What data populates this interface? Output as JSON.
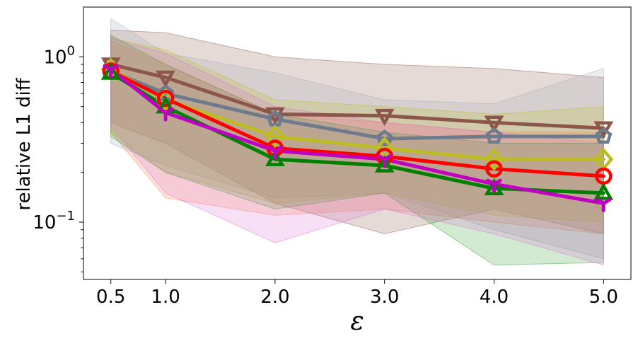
{
  "chart_data": {
    "type": "line",
    "title": "",
    "xlabel": "ε",
    "ylabel": "relative L1 diff",
    "yscale": "log",
    "ylim": [
      0.045,
      2.0
    ],
    "xlim": [
      0.25,
      5.25
    ],
    "x": [
      0.5,
      1.0,
      2.0,
      3.0,
      4.0,
      5.0
    ],
    "x_tick_labels": [
      "0.5",
      "1.0",
      "2.0",
      "3.0",
      "4.0",
      "5.0"
    ],
    "y_major_ticks": [
      {
        "value": 1.0,
        "base": "10",
        "exp": "0"
      },
      {
        "value": 0.1,
        "base": "10",
        "exp": "−1"
      }
    ],
    "grid": false,
    "legend": "none",
    "series": [
      {
        "name": "brown",
        "color": "#8c564b",
        "marker": "triangle-down",
        "values": [
          0.9,
          0.75,
          0.45,
          0.44,
          0.4,
          0.37
        ],
        "band_low": [
          0.4,
          0.3,
          0.13,
          0.085,
          0.12,
          0.085
        ],
        "band_high": [
          1.45,
          1.4,
          1.0,
          0.9,
          0.85,
          0.75
        ],
        "band_color": "#8c564b"
      },
      {
        "name": "slategray",
        "color": "#6d7b8d",
        "marker": "pentagon",
        "values": [
          0.82,
          0.6,
          0.42,
          0.32,
          0.33,
          0.33
        ],
        "band_low": [
          0.3,
          0.22,
          0.14,
          0.15,
          0.09,
          0.06
        ],
        "band_high": [
          1.7,
          1.05,
          0.8,
          0.55,
          0.52,
          0.85
        ],
        "band_color": "#a0aab8"
      },
      {
        "name": "olive",
        "color": "#bcbd22",
        "marker": "diamond",
        "values": [
          0.84,
          0.55,
          0.33,
          0.28,
          0.24,
          0.24
        ],
        "band_low": [
          0.35,
          0.2,
          0.13,
          0.15,
          0.11,
          0.1
        ],
        "band_high": [
          1.3,
          1.1,
          0.55,
          0.5,
          0.45,
          0.5
        ],
        "band_color": "#bcbd22"
      },
      {
        "name": "red",
        "color": "#ff0000",
        "marker": "circle",
        "values": [
          0.82,
          0.56,
          0.28,
          0.25,
          0.21,
          0.19
        ],
        "band_low": [
          0.35,
          0.14,
          0.11,
          0.12,
          0.1,
          0.085
        ],
        "band_high": [
          1.25,
          0.9,
          0.45,
          0.4,
          0.35,
          0.35
        ],
        "band_color": "#ff7f50"
      },
      {
        "name": "green",
        "color": "#008000",
        "marker": "triangle-up",
        "values": [
          0.8,
          0.5,
          0.24,
          0.22,
          0.16,
          0.15
        ],
        "band_low": [
          0.33,
          0.2,
          0.12,
          0.15,
          0.055,
          0.057
        ],
        "band_high": [
          1.35,
          0.9,
          0.45,
          0.35,
          0.3,
          0.3
        ],
        "band_color": "#2ca02c"
      },
      {
        "name": "magenta",
        "color": "#c000c0",
        "marker": "tri-down",
        "values": [
          0.84,
          0.46,
          0.27,
          0.24,
          0.17,
          0.13
        ],
        "band_low": [
          0.38,
          0.15,
          0.075,
          0.12,
          0.085,
          0.055
        ],
        "band_high": [
          1.3,
          1.05,
          0.5,
          0.4,
          0.35,
          0.3
        ],
        "band_color": "#da70d6"
      }
    ]
  }
}
